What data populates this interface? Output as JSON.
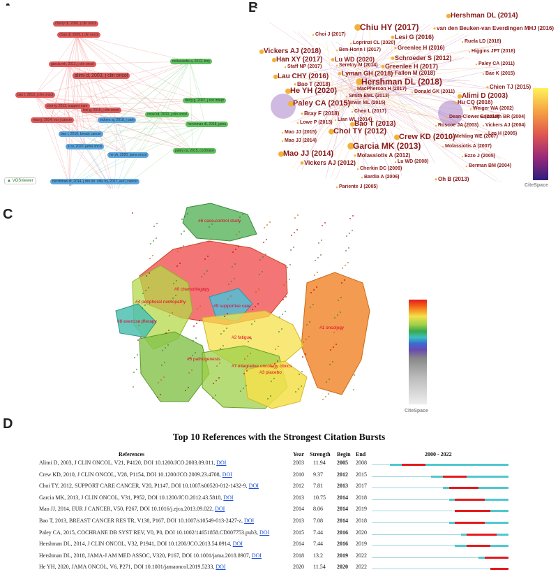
{
  "panels": {
    "a": "A",
    "b": "B",
    "c": "C",
    "d": "D"
  },
  "panel_a": {
    "logo": "VOSviewer",
    "nodes": [
      {
        "label": "cherry dl, 2006, j clin oncol",
        "color": "red"
      },
      {
        "label": "chan dl, 2009, j clin oncol",
        "color": "red"
      },
      {
        "label": "garcia mk, 2013, j clin oncol",
        "color": "red"
      },
      {
        "label": "alimi d, 2003, j clin oncol",
        "color": "red"
      },
      {
        "label": "bao t, 2013, j clin oncol",
        "color": "red"
      },
      {
        "label": "choi ty, 2012, support care",
        "color": "red"
      },
      {
        "label": "lesi g, 2016, j clin oncol",
        "color": "red"
      },
      {
        "label": "mao jj, 2014, eur j cancer",
        "color": "red"
      },
      {
        "label": "molassiotis a, 2012, bmj",
        "color": "green"
      },
      {
        "label": "deng g, 2007, j soc integr",
        "color": "green"
      },
      {
        "label": "crew kd, 2010, j clin oncol",
        "color": "green"
      },
      {
        "label": "hershman dl, 2018, jama",
        "color": "green"
      },
      {
        "label": "paley ca, 2015, cochrane",
        "color": "green"
      },
      {
        "label": "lu w, 2020, jama oncol",
        "color": "blue"
      },
      {
        "label": "he yh, 2020, jama oncol",
        "color": "blue"
      },
      {
        "label": "hershman dl, 2014, j clin oncol",
        "color": "blue"
      },
      {
        "label": "vickers aj, 2018, j pain",
        "color": "blue"
      },
      {
        "label": "bao t, 2018, breast cancer",
        "color": "blue"
      },
      {
        "label": "chiu hy, 2017, eur j cancer",
        "color": "blue"
      }
    ]
  },
  "panel_b": {
    "logo": "CiteSpace",
    "nodes": [
      "Hershman DL (2014)",
      "Chiu HY (2017)",
      "van den Beuken-van Everdingen MHJ (2016)",
      "Choi J (2017)",
      "Lesi G (2016)",
      "Loprinzi CL (2020)",
      "Ruela LD (2018)",
      "Vickers AJ (2018)",
      "Ben-Horin I (2017)",
      "Greenlee H (2016)",
      "Higgins JPT (2018)",
      "Han XY (2017)",
      "Lu WD (2020)",
      "Schroeder S (2012)",
      "Staff NP (2017)",
      "Seretny M (2014)",
      "Greenlee H (2017)",
      "Paley CA (2011)",
      "Lau CHY (2016)",
      "Lyman GH (2018)",
      "Fallon M (2018)",
      "Bae K (2015)",
      "Bao T (2018)",
      "Hershman DL (2018)",
      "He YH (2020)",
      "MacPherson H (2017)",
      "Smith EML (2013)",
      "Donald GK (2011)",
      "Chien TJ (2015)",
      "Alimi D (2003)",
      "Paley CA (2015)",
      "Irwin ML (2015)",
      "Hu CQ (2016)",
      "Chen L (2017)",
      "Bray F (2018)",
      "Weiger WA (2002)",
      "Lian WL (2014)",
      "Dean-Clower E (2010)",
      "Cassileth BR (2004)",
      "Bao T (2013)",
      "Lowe P (2013)",
      "Vickers AJ (2004)",
      "Roscoe JA (2003)",
      "Mao JJ (2015)",
      "Choi TY (2012)",
      "Lee H (2005)",
      "Mao JJ (2014)",
      "Crew KD (2010)",
      "Mehling WE (2007)",
      "Garcia MK (2013)",
      "Molassiotis A (2007)",
      "Mao JJ (2014)",
      "Molassiotis A (2012)",
      "Ezzo J (2005)",
      "Vickers AJ (2012)",
      "Lu WD (2008)",
      "Berman BM (2004)",
      "Cherkin DC (2009)",
      "Bardia A (2006)",
      "Oh B (2013)",
      "Pariente J (2005)"
    ]
  },
  "panel_c": {
    "logo": "CiteSpace",
    "clusters": [
      "#6 case control study",
      "#0 chemotherapy",
      "#4 peripheral neuropathy",
      "#9 supportive care",
      "#8 exercise therapy",
      "#1 oncology",
      "#2 fatigue",
      "#5 pathogenesis",
      "#7 integrative oncology clinics",
      "#3 placebo"
    ]
  },
  "table": {
    "title": "Top 10 References with the Strongest Citation Bursts",
    "headers": {
      "ref": "References",
      "year": "Year",
      "strength": "Strength",
      "begin": "Begin",
      "end": "End",
      "range": "2000 - 2022"
    },
    "range_start": 2000,
    "range_end": 2022,
    "rows": [
      {
        "ref": "Alimi D, 2003, J CLIN ONCOL, V21, P4120, DOI 10.1200/JCO.2003.09.011,",
        "doi": "DOI",
        "year": "2003",
        "strength": "11.94",
        "begin": "2005",
        "end": "2008",
        "y": 2003,
        "b": 2005,
        "e": 2008
      },
      {
        "ref": "Crew KD, 2010, J CLIN ONCOL, V28, P1154, DOI 10.1200/JCO.2009.23.4708,",
        "doi": "DOI",
        "year": "2010",
        "strength": "9.37",
        "begin": "2012",
        "end": "2015",
        "y": 2010,
        "b": 2012,
        "e": 2015
      },
      {
        "ref": "Choi TY, 2012, SUPPORT CARE CANCER, V20, P1147, DOI 10.1007/s00520-012-1432-9,",
        "doi": "DOI",
        "year": "2012",
        "strength": "7.81",
        "begin": "2013",
        "end": "2017",
        "y": 2012,
        "b": 2013,
        "e": 2017
      },
      {
        "ref": "Garcia MK, 2013, J CLIN ONCOL, V31, P952, DOI 10.1200/JCO.2012.43.5818,",
        "doi": "DOI",
        "year": "2013",
        "strength": "10.75",
        "begin": "2014",
        "end": "2018",
        "y": 2013,
        "b": 2014,
        "e": 2018
      },
      {
        "ref": "Mao JJ, 2014, EUR J CANCER, V50, P267, DOI 10.1016/j.ejca.2013.09.022,",
        "doi": "DOI",
        "year": "2014",
        "strength": "8.06",
        "begin": "2014",
        "end": "2019",
        "y": 2014,
        "b": 2014,
        "e": 2019
      },
      {
        "ref": "Bao T, 2013, BREAST CANCER RES TR, V138, P167, DOI 10.1007/s10549-013-2427-z,",
        "doi": "DOI",
        "year": "2013",
        "strength": "7.08",
        "begin": "2014",
        "end": "2018",
        "y": 2013,
        "b": 2014,
        "e": 2018
      },
      {
        "ref": "Paley CA, 2015, COCHRANE DB SYST REV, V0, P0, DOI 10.1002/14651858.CD007753.pub3,",
        "doi": "DOI",
        "year": "2015",
        "strength": "7.44",
        "begin": "2016",
        "end": "2020",
        "y": 2015,
        "b": 2016,
        "e": 2020
      },
      {
        "ref": "Hershman DL, 2014, J CLIN ONCOL, V32, P1941, DOI 10.1200/JCO.2013.54.0914,",
        "doi": "DOI",
        "year": "2014",
        "strength": "7.44",
        "begin": "2016",
        "end": "2019",
        "y": 2014,
        "b": 2016,
        "e": 2019
      },
      {
        "ref": "Hershman DL, 2018, JAMA-J AM MED ASSOC, V320, P167, DOI 10.1001/jama.2018.8907,",
        "doi": "DOI",
        "year": "2018",
        "strength": "13.2",
        "begin": "2019",
        "end": "2022",
        "y": 2018,
        "b": 2019,
        "e": 2022
      },
      {
        "ref": "He YH, 2020, JAMA ONCOL, V6, P271, DOI 10.1001/jamaoncol.2019.5233,",
        "doi": "DOI",
        "year": "2020",
        "strength": "11.54",
        "begin": "2020",
        "end": "2022",
        "y": 2020,
        "b": 2020,
        "e": 2022
      }
    ]
  },
  "colors": {
    "burst": "#e31a1c",
    "track": "#4fc7cf",
    "node_text": "#8b1a1a",
    "cluster_label": "#e8002a"
  }
}
